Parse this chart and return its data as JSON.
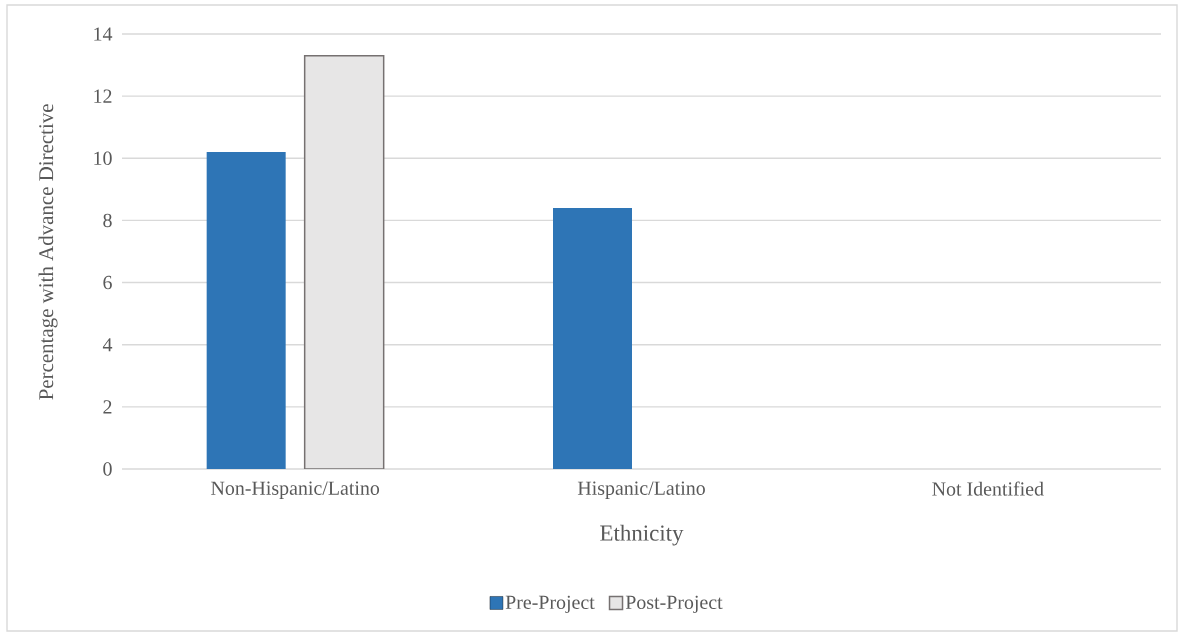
{
  "chart_data": {
    "type": "bar",
    "xlabel": "Ethnicity",
    "ylabel": "Percentage with Advance Directive",
    "categories": [
      "Non-Hispanic/Latino",
      "Hispanic/Latino",
      "Not Identified"
    ],
    "series": [
      {
        "name": "Pre-Project",
        "color": "#2e75b6",
        "values": [
          10.2,
          8.4,
          0
        ]
      },
      {
        "name": "Post-Project",
        "color": "#e7e6e6",
        "values": [
          13.3,
          0,
          0
        ]
      }
    ],
    "ylim": [
      0,
      14
    ],
    "yticks": [
      0,
      2,
      4,
      6,
      8,
      10,
      12,
      14
    ],
    "grid": "y",
    "legend": "bottom"
  }
}
